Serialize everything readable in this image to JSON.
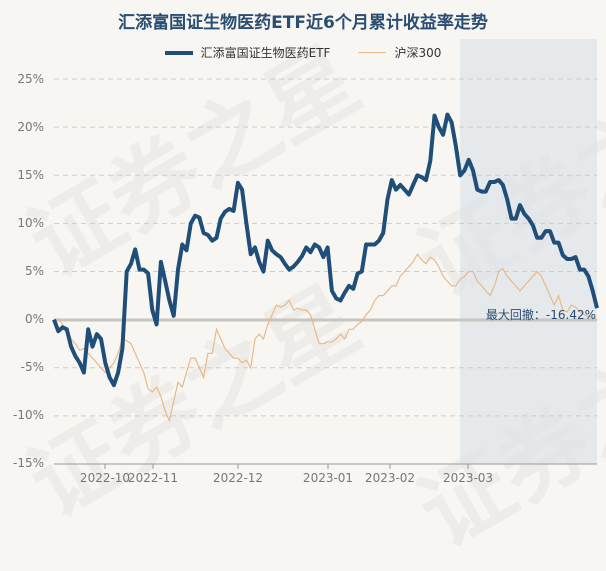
{
  "title": "汇添富国证生物医药ETF近6个月累计收益率走势",
  "legend": [
    {
      "label": "汇添富国证生物医药ETF",
      "color": "#1f4e79"
    },
    {
      "label": "沪深300",
      "color": "#e8b98a"
    }
  ],
  "watermark": "证券之星",
  "annotation": {
    "label": "最大回撤：-16.42%"
  },
  "y_ticks": [
    "25%",
    "20%",
    "15%",
    "10%",
    "5%",
    "0%",
    "-5%",
    "-10%",
    "-15%"
  ],
  "x_ticks": [
    "2022-10",
    "2022-11",
    "2022-12",
    "2023-01",
    "2023-02",
    "2023-03"
  ],
  "chart_data": {
    "type": "line",
    "title": "汇添富国证生物医药ETF近6个月累计收益率走势",
    "xlabel": "",
    "ylabel": "",
    "ylim": [
      -15,
      25
    ],
    "y_ticks": [
      25,
      20,
      15,
      10,
      5,
      0,
      -5,
      -10,
      -15
    ],
    "x_ticks": [
      "2022-10",
      "2022-11",
      "2022-12",
      "2023-01",
      "2023-02",
      "2023-03"
    ],
    "grid": true,
    "legend_position": "top",
    "shaded_region": {
      "label": "最大回撤",
      "value": "-16.42%",
      "from_index": 95,
      "to_index": 127
    },
    "series": [
      {
        "name": "汇添富国证生物医药ETF",
        "color": "#1f4e79",
        "values": [
          0.0,
          -1.2,
          -0.8,
          -1.0,
          -2.8,
          -3.8,
          -4.5,
          -5.5,
          -1.0,
          -2.8,
          -1.5,
          -2.0,
          -4.5,
          -6.0,
          -6.8,
          -5.5,
          -3.0,
          5.0,
          5.8,
          7.3,
          5.2,
          5.2,
          4.8,
          1.0,
          -0.5,
          6.0,
          4.0,
          2.0,
          0.4,
          5.2,
          7.8,
          7.2,
          10.0,
          10.8,
          10.6,
          9.0,
          8.8,
          8.2,
          8.5,
          10.5,
          11.2,
          11.5,
          11.3,
          14.2,
          13.5,
          10.0,
          6.8,
          7.5,
          6.0,
          5.0,
          8.2,
          7.2,
          6.8,
          6.5,
          5.8,
          5.2,
          5.5,
          6.0,
          6.6,
          7.5,
          7.0,
          7.8,
          7.5,
          6.5,
          7.5,
          3.0,
          2.2,
          2.0,
          2.8,
          3.5,
          3.2,
          4.8,
          5.0,
          7.8,
          7.8,
          7.8,
          8.2,
          9.0,
          12.5,
          14.5,
          13.5,
          14.0,
          13.5,
          13.0,
          14.0,
          15.0,
          14.8,
          14.5,
          16.5,
          21.2,
          20.0,
          19.2,
          21.3,
          20.5,
          18.0,
          15.0,
          15.5,
          16.6,
          15.5,
          13.5,
          13.3,
          13.3,
          14.3,
          14.3,
          14.5,
          14.0,
          12.5,
          10.5,
          10.5,
          11.9,
          11.0,
          10.5,
          9.8,
          8.5,
          8.5,
          9.2,
          9.2,
          8.0,
          8.0,
          6.7,
          6.3,
          6.3,
          6.5,
          5.2,
          5.2,
          4.5,
          3.0,
          1.2
        ]
      },
      {
        "name": "沪深300",
        "color": "#e8b98a",
        "values": [
          0.0,
          0.0,
          -0.5,
          -1.5,
          -2.0,
          -2.5,
          -3.2,
          -3.0,
          -3.5,
          -4.0,
          -4.5,
          -5.0,
          -5.5,
          -5.0,
          -4.5,
          -3.5,
          -2.0,
          -2.2,
          -2.5,
          -3.5,
          -4.5,
          -5.5,
          -7.2,
          -7.5,
          -7.0,
          -8.0,
          -9.5,
          -10.5,
          -8.5,
          -6.5,
          -7.0,
          -5.5,
          -4.0,
          -4.0,
          -5.0,
          -6.0,
          -3.5,
          -3.5,
          -1.0,
          -2.0,
          -3.0,
          -3.5,
          -4.0,
          -4.0,
          -4.5,
          -4.2,
          -5.0,
          -2.0,
          -1.5,
          -2.0,
          -0.5,
          0.5,
          1.5,
          1.3,
          1.5,
          2.0,
          1.0,
          1.2,
          1.0,
          1.0,
          0.5,
          -1.0,
          -2.5,
          -2.5,
          -2.3,
          -2.3,
          -2.0,
          -1.5,
          -2.0,
          -1.0,
          -1.0,
          -0.5,
          -0.2,
          0.5,
          1.0,
          2.0,
          2.5,
          2.5,
          3.0,
          3.5,
          3.5,
          4.5,
          5.0,
          5.5,
          6.0,
          6.8,
          6.2,
          5.8,
          6.5,
          6.2,
          5.5,
          4.5,
          4.0,
          3.5,
          3.5,
          4.2,
          4.5,
          5.0,
          5.0,
          4.0,
          3.5,
          3.0,
          2.5,
          3.5,
          5.0,
          5.3,
          4.5,
          4.0,
          3.5,
          3.0,
          3.5,
          4.0,
          4.5,
          5.0,
          4.5,
          3.5,
          2.5,
          1.5,
          2.5,
          1.0,
          0.8,
          1.5,
          1.3,
          0.8,
          0.5,
          0.3,
          0.2,
          0.0
        ]
      }
    ]
  }
}
